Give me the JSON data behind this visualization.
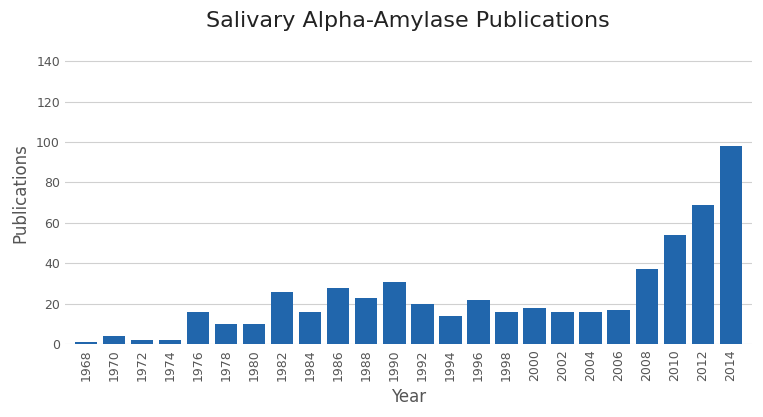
{
  "title": "Salivary Alpha-Amylase Publications",
  "xlabel": "Year",
  "ylabel": "Publications",
  "bar_color": "#2166ac",
  "background_color": "#ffffff",
  "years": [
    1968,
    1970,
    1972,
    1974,
    1976,
    1978,
    1980,
    1982,
    1984,
    1986,
    1988,
    1990,
    1992,
    1994,
    1996,
    1998,
    2000,
    2002,
    2004,
    2006,
    2008,
    2010,
    2012,
    2014
  ],
  "values": [
    1,
    4,
    2,
    2,
    16,
    10,
    10,
    26,
    16,
    28,
    23,
    31,
    20,
    14,
    22,
    16,
    18,
    16,
    16,
    17,
    37,
    54,
    69,
    98
  ],
  "ylim": [
    0,
    150
  ],
  "yticks": [
    0,
    20,
    40,
    60,
    80,
    100,
    120,
    140
  ],
  "grid_color": "#d0d0d0",
  "title_fontsize": 16,
  "label_fontsize": 12,
  "tick_fontsize": 9
}
